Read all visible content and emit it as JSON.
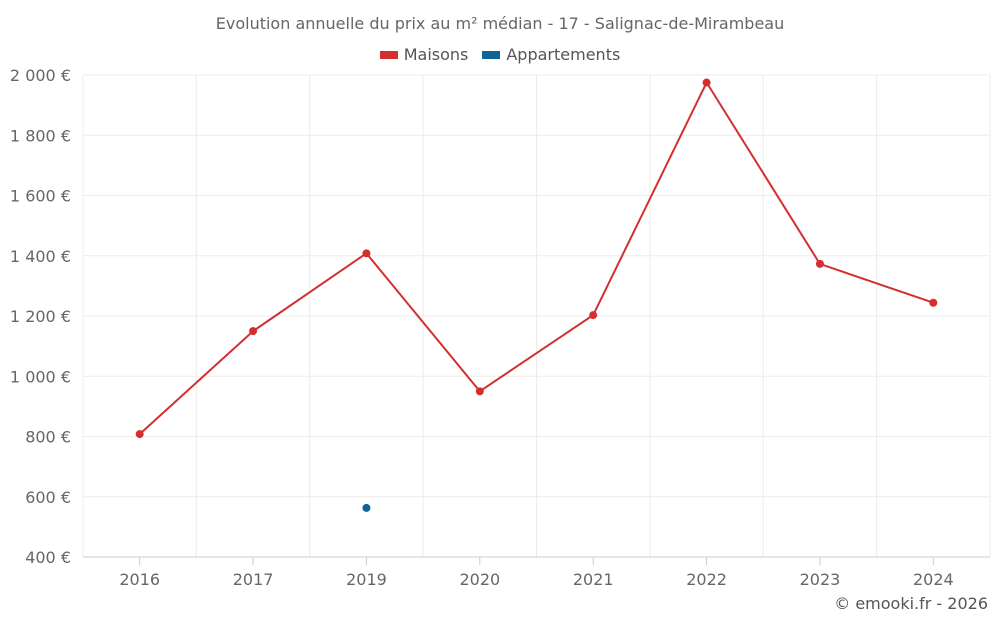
{
  "chart_data": {
    "type": "line",
    "title": "Evolution annuelle du prix au m² médian - 17 - Salignac-de-Mirambeau",
    "categories": [
      "2016",
      "2017",
      "2019",
      "2020",
      "2021",
      "2022",
      "2023",
      "2024"
    ],
    "series": [
      {
        "name": "Maisons",
        "color": "#d32f2f",
        "values": [
          808,
          1150,
          1408,
          950,
          1203,
          1975,
          1373,
          1244
        ]
      },
      {
        "name": "Appartements",
        "color": "#0d6496",
        "values": [
          null,
          null,
          563,
          null,
          null,
          null,
          null,
          null
        ]
      }
    ],
    "ylim": [
      400,
      2000
    ],
    "yticks": [
      400,
      600,
      800,
      1000,
      1200,
      1400,
      1600,
      1800,
      2000
    ],
    "ytick_labels": [
      "400 €",
      "600 €",
      "800 €",
      "1 000 €",
      "1 200 €",
      "1 400 €",
      "1 600 €",
      "1 800 €",
      "2 000 €"
    ],
    "grid": true,
    "legend_position": "top-center",
    "credit": "© emooki.fr - 2026"
  }
}
